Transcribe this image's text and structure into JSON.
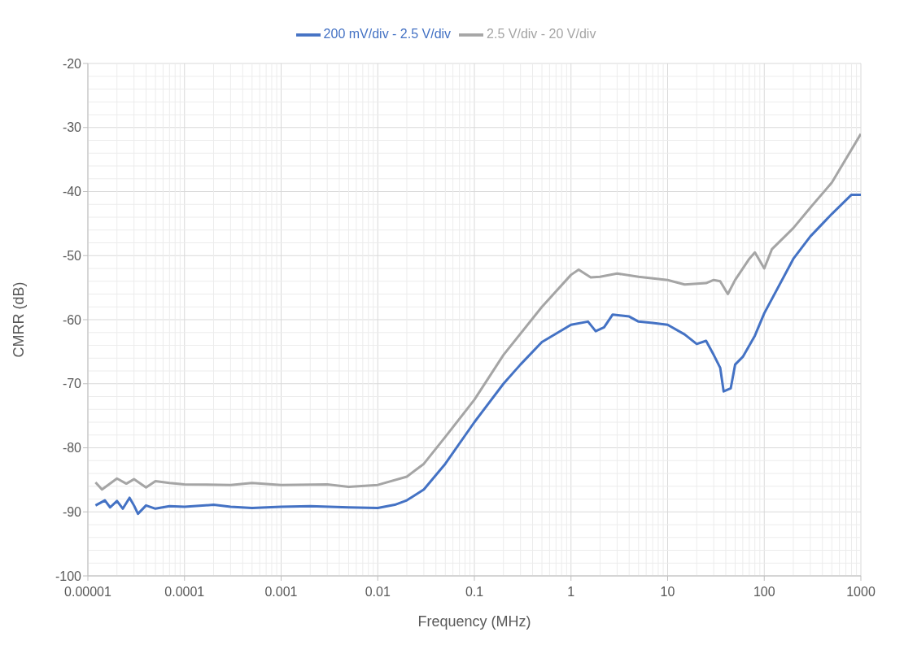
{
  "chart_data": {
    "type": "line",
    "xlabel": "Frequency (MHz)",
    "ylabel": "CMRR (dB)",
    "log": "x",
    "grid": true,
    "legend": "top",
    "line_style": "solid",
    "marker": "none",
    "xlim": [
      1e-05,
      1000
    ],
    "xticks": [
      {
        "value": 1e-05,
        "label": "0.00001"
      },
      0.0001,
      0.001,
      0.01,
      0.1,
      1,
      10,
      100,
      1000
    ],
    "ylim": [
      -100,
      -20
    ],
    "yticks": [
      -100,
      -90,
      -80,
      -70,
      -60,
      -50,
      -40,
      -30,
      -20
    ],
    "series": [
      {
        "name": "200 mV/div - 2.5 V/div",
        "color": "#4472c4",
        "x": [
          1.2e-05,
          1.5e-05,
          1.7e-05,
          2e-05,
          2.3e-05,
          2.7e-05,
          3e-05,
          3.3e-05,
          4e-05,
          5e-05,
          7e-05,
          0.0001,
          0.0002,
          0.0003,
          0.0005,
          0.001,
          0.002,
          0.005,
          0.01,
          0.015,
          0.02,
          0.03,
          0.05,
          0.1,
          0.2,
          0.3,
          0.5,
          1,
          1.5,
          1.8,
          2.2,
          2.7,
          4,
          5,
          7,
          10,
          15,
          20,
          25,
          30,
          35,
          38,
          45,
          50,
          60,
          80,
          100,
          200,
          300,
          500,
          800,
          1000
        ],
        "values": [
          -89,
          -88.2,
          -89.3,
          -88.3,
          -89.5,
          -87.8,
          -89,
          -90.3,
          -89,
          -89.5,
          -89.1,
          -89.2,
          -88.9,
          -89.2,
          -89.4,
          -89.2,
          -89.1,
          -89.3,
          -89.4,
          -88.9,
          -88.2,
          -86.5,
          -82.5,
          -76,
          -70,
          -67,
          -63.5,
          -60.8,
          -60.3,
          -61.8,
          -61.2,
          -59.2,
          -59.5,
          -60.3,
          -60.5,
          -60.8,
          -62.3,
          -63.8,
          -63.3,
          -65.5,
          -67.5,
          -71.2,
          -70.7,
          -67,
          -65.8,
          -62.5,
          -59,
          -50.5,
          -47,
          -43.5,
          -40.5,
          -40.5
        ]
      },
      {
        "name": "2.5 V/div - 20 V/div",
        "color": "#a5a5a5",
        "x": [
          1.2e-05,
          1.4e-05,
          2e-05,
          2.5e-05,
          3e-05,
          4e-05,
          5e-05,
          7e-05,
          0.0001,
          0.0003,
          0.0005,
          0.001,
          0.003,
          0.005,
          0.01,
          0.02,
          0.03,
          0.05,
          0.1,
          0.2,
          0.5,
          1,
          1.2,
          1.6,
          2,
          3,
          5,
          10,
          15,
          25,
          30,
          35,
          42,
          50,
          70,
          80,
          100,
          120,
          200,
          300,
          500,
          1000
        ],
        "values": [
          -85.4,
          -86.5,
          -84.8,
          -85.6,
          -84.9,
          -86.2,
          -85.2,
          -85.5,
          -85.7,
          -85.8,
          -85.5,
          -85.8,
          -85.7,
          -86.1,
          -85.8,
          -84.5,
          -82.5,
          -78.3,
          -72.5,
          -65.5,
          -58,
          -53,
          -52.2,
          -53.4,
          -53.3,
          -52.8,
          -53.3,
          -53.8,
          -54.5,
          -54.3,
          -53.8,
          -54,
          -56,
          -53.8,
          -50.5,
          -49.5,
          -52,
          -49,
          -45.7,
          -42.5,
          -38.6,
          -31
        ]
      }
    ]
  }
}
